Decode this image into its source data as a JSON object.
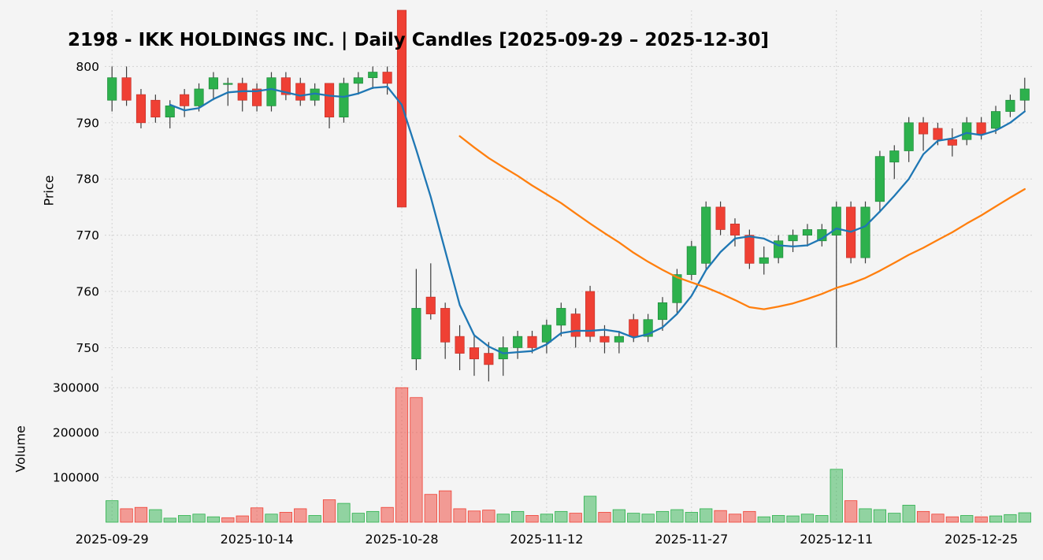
{
  "chart_data": {
    "type": "candlestick",
    "title": "2198 - IKK HOLDINGS INC. | Daily Candles [2025-09-29 – 2025-12-30]",
    "price_axis": {
      "label": "Price",
      "ticks": [
        750,
        760,
        770,
        780,
        790,
        800
      ],
      "range": [
        746,
        810
      ]
    },
    "volume_axis": {
      "label": "Volume",
      "ticks": [
        100000,
        200000,
        300000
      ],
      "range": [
        0,
        325000
      ]
    },
    "x_ticks": [
      {
        "index": 0,
        "label": "2025-09-29"
      },
      {
        "index": 10,
        "label": "2025-10-14"
      },
      {
        "index": 20,
        "label": "2025-10-28"
      },
      {
        "index": 30,
        "label": "2025-11-12"
      },
      {
        "index": 40,
        "label": "2025-11-27"
      },
      {
        "index": 50,
        "label": "2025-12-11"
      },
      {
        "index": 60,
        "label": "2025-12-25"
      }
    ],
    "moving_averages": [
      {
        "name": "short-ma",
        "window": 5,
        "color": "#1f77b4"
      },
      {
        "name": "long-ma",
        "window": 25,
        "color": "#ff7f0e"
      }
    ],
    "colors": {
      "up": "#2db14d",
      "down": "#ef4034",
      "up_edge": "#1e8a3a",
      "down_edge": "#c4322a",
      "wick": "#3d3d3d",
      "grid": "#d2d2d2",
      "background": "#f4f4f4",
      "text": "#000000"
    },
    "dates": [
      "2025-09-29",
      "2025-09-30",
      "2025-10-01",
      "2025-10-02",
      "2025-10-03",
      "2025-10-06",
      "2025-10-07",
      "2025-10-08",
      "2025-10-09",
      "2025-10-10",
      "2025-10-14",
      "2025-10-15",
      "2025-10-16",
      "2025-10-17",
      "2025-10-20",
      "2025-10-21",
      "2025-10-22",
      "2025-10-23",
      "2025-10-24",
      "2025-10-27",
      "2025-10-28",
      "2025-10-29",
      "2025-10-30",
      "2025-10-31",
      "2025-11-04",
      "2025-11-05",
      "2025-11-06",
      "2025-11-07",
      "2025-11-10",
      "2025-11-11",
      "2025-11-12",
      "2025-11-13",
      "2025-11-14",
      "2025-11-17",
      "2025-11-18",
      "2025-11-19",
      "2025-11-20",
      "2025-11-21",
      "2025-11-25",
      "2025-11-26",
      "2025-11-27",
      "2025-11-28",
      "2025-12-01",
      "2025-12-02",
      "2025-12-03",
      "2025-12-04",
      "2025-12-05",
      "2025-12-08",
      "2025-12-09",
      "2025-12-10",
      "2025-12-11",
      "2025-12-12",
      "2025-12-15",
      "2025-12-16",
      "2025-12-17",
      "2025-12-18",
      "2025-12-19",
      "2025-12-22",
      "2025-12-23",
      "2025-12-24",
      "2025-12-25",
      "2025-12-26",
      "2025-12-29",
      "2025-12-30"
    ],
    "ohlc": [
      [
        794,
        800,
        792,
        798
      ],
      [
        798,
        800,
        793,
        794
      ],
      [
        795,
        796,
        789,
        790
      ],
      [
        794,
        795,
        790,
        791
      ],
      [
        791,
        794,
        789,
        793
      ],
      [
        795,
        796,
        791,
        793
      ],
      [
        793,
        797,
        792,
        796
      ],
      [
        796,
        799,
        794,
        798
      ],
      [
        797,
        798,
        793,
        797
      ],
      [
        797,
        798,
        792,
        794
      ],
      [
        796,
        797,
        792,
        793
      ],
      [
        793,
        799,
        792,
        798
      ],
      [
        798,
        799,
        794,
        795
      ],
      [
        797,
        798,
        793,
        794
      ],
      [
        794,
        797,
        793,
        796
      ],
      [
        797,
        797,
        789,
        791
      ],
      [
        791,
        798,
        790,
        797
      ],
      [
        797,
        799,
        795,
        798
      ],
      [
        798,
        800,
        796,
        799
      ],
      [
        799,
        800,
        795,
        797
      ],
      [
        810,
        810,
        775,
        775
      ],
      [
        748,
        764,
        746,
        757
      ],
      [
        759,
        765,
        755,
        756
      ],
      [
        757,
        758,
        748,
        751
      ],
      [
        752,
        754,
        746,
        749
      ],
      [
        750,
        752,
        745,
        748
      ],
      [
        749,
        751,
        744,
        747
      ],
      [
        748,
        752,
        745,
        750
      ],
      [
        750,
        753,
        748,
        752
      ],
      [
        752,
        753,
        749,
        750
      ],
      [
        751,
        755,
        749,
        754
      ],
      [
        754,
        758,
        752,
        757
      ],
      [
        756,
        757,
        750,
        752
      ],
      [
        760,
        761,
        751,
        752
      ],
      [
        752,
        754,
        749,
        751
      ],
      [
        751,
        753,
        749,
        752
      ],
      [
        755,
        756,
        751,
        752
      ],
      [
        752,
        756,
        751,
        755
      ],
      [
        755,
        759,
        753,
        758
      ],
      [
        758,
        764,
        756,
        763
      ],
      [
        763,
        769,
        762,
        768
      ],
      [
        765,
        776,
        764,
        775
      ],
      [
        775,
        776,
        770,
        771
      ],
      [
        772,
        773,
        768,
        770
      ],
      [
        770,
        771,
        764,
        765
      ],
      [
        765,
        768,
        763,
        766
      ],
      [
        766,
        770,
        765,
        769
      ],
      [
        769,
        771,
        767,
        770
      ],
      [
        770,
        772,
        768,
        771
      ],
      [
        769,
        772,
        768,
        771
      ],
      [
        770,
        776,
        750,
        775
      ],
      [
        775,
        776,
        765,
        766
      ],
      [
        766,
        776,
        765,
        775
      ],
      [
        776,
        785,
        774,
        784
      ],
      [
        783,
        786,
        780,
        785
      ],
      [
        785,
        791,
        783,
        790
      ],
      [
        790,
        791,
        785,
        788
      ],
      [
        789,
        790,
        786,
        787
      ],
      [
        787,
        789,
        784,
        786
      ],
      [
        787,
        791,
        786,
        790
      ],
      [
        790,
        791,
        787,
        788
      ],
      [
        789,
        793,
        788,
        792
      ],
      [
        792,
        795,
        791,
        794
      ],
      [
        794,
        798,
        792,
        796
      ]
    ],
    "volume": [
      48000,
      30000,
      33000,
      28000,
      9000,
      15000,
      18000,
      12000,
      10000,
      14000,
      32000,
      18000,
      22000,
      30000,
      15000,
      50000,
      42000,
      20000,
      24000,
      33000,
      300000,
      278000,
      62000,
      70000,
      30000,
      25000,
      27000,
      18000,
      24000,
      15000,
      18000,
      24000,
      20000,
      58000,
      22000,
      28000,
      20000,
      18000,
      24000,
      28000,
      22000,
      30000,
      26000,
      18000,
      24000,
      12000,
      15000,
      14000,
      18000,
      15000,
      118000,
      48000,
      30000,
      28000,
      20000,
      38000,
      24000,
      18000,
      12000,
      15000,
      12000,
      14000,
      17000,
      21000
    ]
  }
}
